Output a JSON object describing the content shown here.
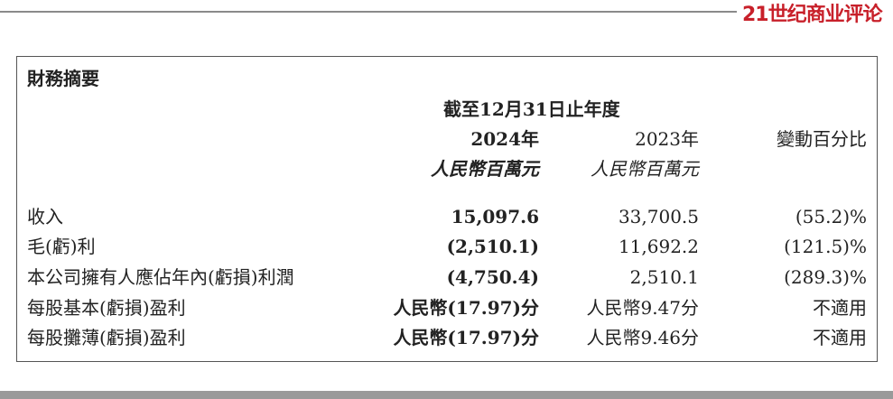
{
  "logo": "21世纪商业评论",
  "table": {
    "title": "財務摘要",
    "period_header": "截至12月31日止年度",
    "columns": [
      {
        "year": "2024年",
        "unit": "人民幣百萬元"
      },
      {
        "year": "2023年",
        "unit": "人民幣百萬元"
      },
      {
        "year": "變動百分比",
        "unit": ""
      }
    ],
    "rows": [
      {
        "label": "收入",
        "v2024": "15,097.6",
        "v2023": "33,700.5",
        "change": "(55.2)%"
      },
      {
        "label": "毛(虧)利",
        "v2024": "(2,510.1)",
        "v2023": "11,692.2",
        "change": "(121.5)%"
      },
      {
        "label": "本公司擁有人應佔年內(虧損)利潤",
        "v2024": "(4,750.4)",
        "v2023": "2,510.1",
        "change": "(289.3)%"
      },
      {
        "label": "每股基本(虧損)盈利",
        "v2024": "人民幣(17.97)分",
        "v2023": "人民幣9.47分",
        "change": "不適用"
      },
      {
        "label": "每股攤薄(虧損)盈利",
        "v2024": "人民幣(17.97)分",
        "v2023": "人民幣9.46分",
        "change": "不適用"
      }
    ]
  }
}
